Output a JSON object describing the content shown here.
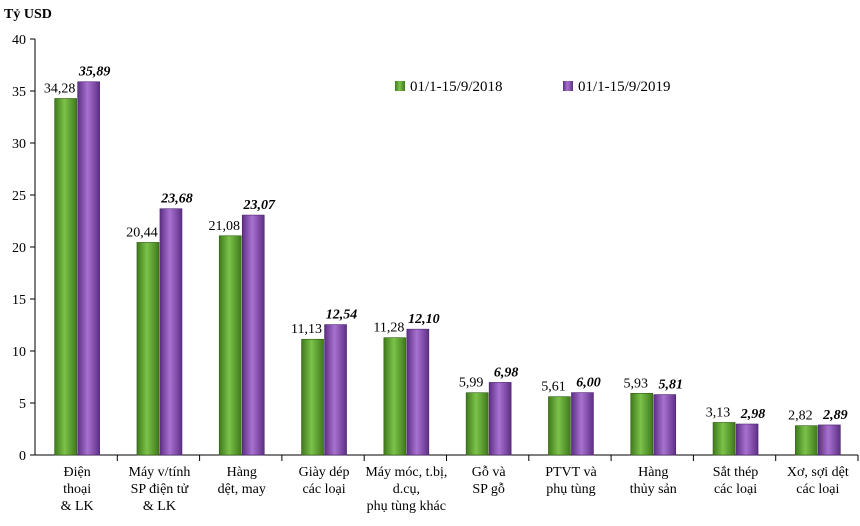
{
  "chart_data": {
    "type": "bar",
    "ylabel": "Tỷ USD",
    "ylim": [
      0,
      40
    ],
    "yticks": [
      0,
      5,
      10,
      15,
      20,
      25,
      30,
      35,
      40
    ],
    "legend_position": "top-right",
    "grid": false,
    "categories": [
      [
        "Điện",
        "thoại",
        "& LK"
      ],
      [
        "Máy v/tính",
        "SP điện tử",
        "& LK"
      ],
      [
        "Hàng",
        "dệt, may"
      ],
      [
        "Giày dép",
        "các loại"
      ],
      [
        "Máy móc, t.bị,",
        "d.cụ,",
        "phụ tùng khác"
      ],
      [
        "Gỗ và",
        "SP gỗ"
      ],
      [
        "PTVT và",
        "phụ tùng"
      ],
      [
        "Hàng",
        "thủy sản"
      ],
      [
        "Sắt thép",
        "các loại"
      ],
      [
        "Xơ, sợi dệt",
        "các loại"
      ]
    ],
    "series": [
      {
        "name": "01/1-15/9/2018",
        "color": "#5aa02c",
        "values": [
          34.28,
          20.44,
          21.08,
          11.13,
          11.28,
          5.99,
          5.61,
          5.93,
          3.13,
          2.82
        ],
        "labels": [
          "34,28",
          "20,44",
          "21,08",
          "11,13",
          "11,28",
          "5,99",
          "5,61",
          "5,93",
          "3,13",
          "2,82"
        ]
      },
      {
        "name": "01/1-15/9/2019",
        "color": "#8e4fb5",
        "values": [
          35.89,
          23.68,
          23.07,
          12.54,
          12.1,
          6.98,
          6.0,
          5.81,
          2.98,
          2.89
        ],
        "labels": [
          "35,89",
          "23,68",
          "23,07",
          "12,54",
          "12,10",
          "6,98",
          "6,00",
          "5,81",
          "2,98",
          "2,89"
        ]
      }
    ]
  }
}
